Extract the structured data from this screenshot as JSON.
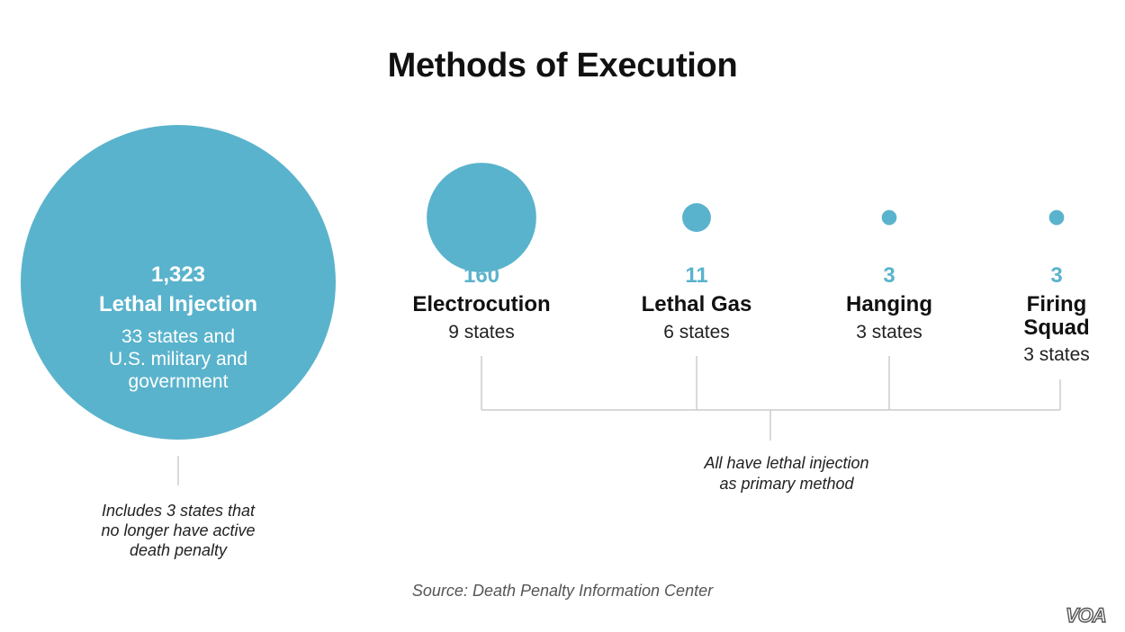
{
  "title": "Methods of Execution",
  "accent_color": "#5ab3cc",
  "connector_color": "#cccccc",
  "chart_data": {
    "type": "bubble",
    "title": "Methods of Execution",
    "series": [
      {
        "category": "Lethal Injection",
        "value": 1323,
        "value_label": "1,323",
        "detail_lines": [
          "33 states and",
          "U.S. military and",
          "government"
        ]
      },
      {
        "category": "Electrocution",
        "value": 160,
        "value_label": "160",
        "detail_lines": [
          "9 states"
        ]
      },
      {
        "category": "Lethal Gas",
        "value": 11,
        "value_label": "11",
        "detail_lines": [
          "6 states"
        ]
      },
      {
        "category": "Hanging",
        "value": 3,
        "value_label": "3",
        "detail_lines": [
          "3 states"
        ]
      },
      {
        "category": "Firing Squad",
        "value": 3,
        "value_label": "3",
        "label_lines": [
          "Firing",
          "Squad"
        ],
        "detail_lines": [
          "3 states"
        ]
      }
    ],
    "annotations": [
      {
        "target": "Lethal Injection",
        "lines": [
          "Includes 3 states that",
          "no longer have active",
          "death penalty"
        ]
      },
      {
        "target": "Electrocution, Lethal Gas, Hanging, Firing Squad",
        "lines": [
          "All have lethal injection",
          "as primary method"
        ]
      }
    ]
  },
  "source": "Source: Death Penalty Information Center",
  "logo_text": "VOA"
}
